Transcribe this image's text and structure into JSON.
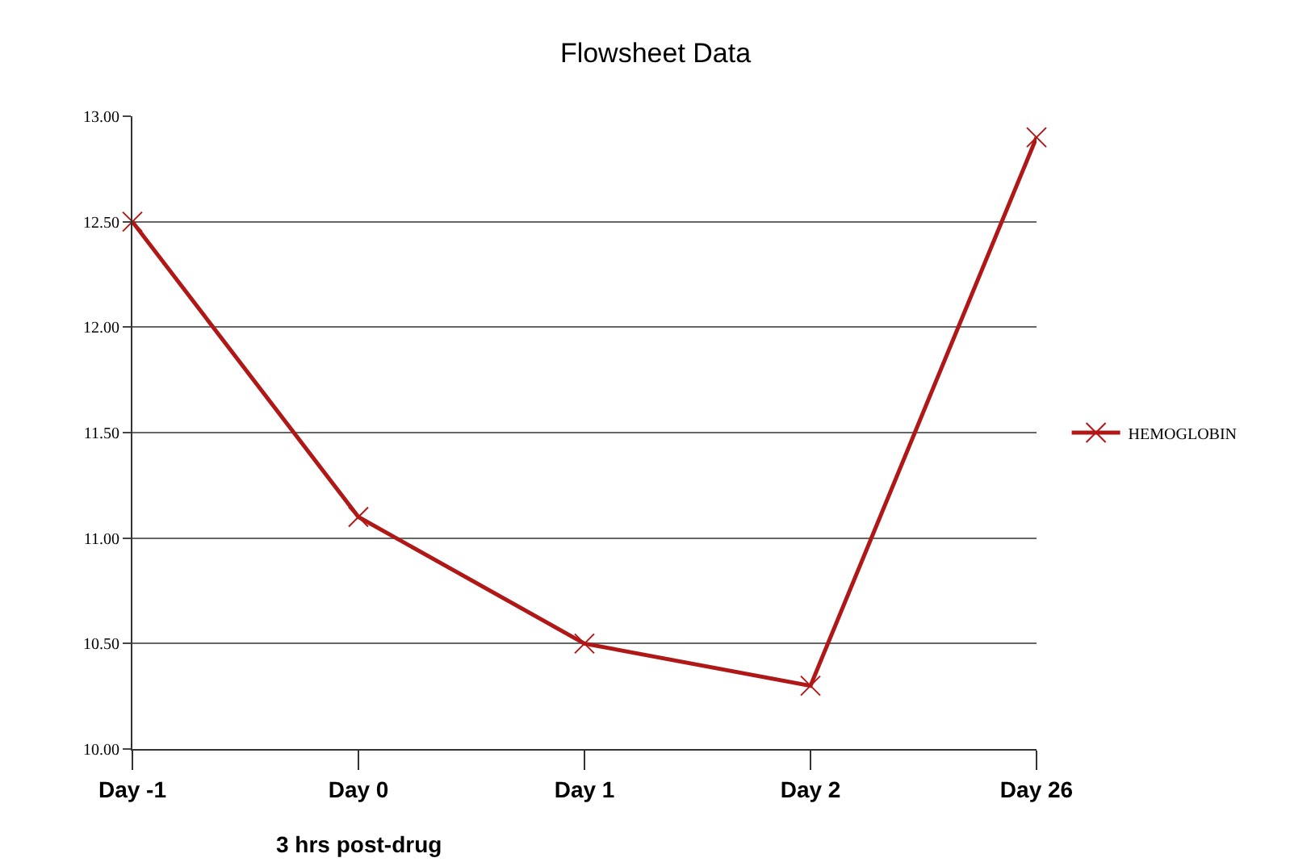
{
  "chart_data": {
    "type": "line",
    "title": "Flowsheet Data",
    "categories": [
      "Day -1",
      "Day 0",
      "Day 1",
      "Day 2",
      "Day 26"
    ],
    "series": [
      {
        "name": "HEMOGLOBIN",
        "color": "#b01818",
        "values": [
          12.5,
          11.1,
          10.5,
          10.3,
          12.9
        ]
      }
    ],
    "ylim": [
      10,
      13
    ],
    "yticks": [
      {
        "value": 10,
        "label": "10.00"
      },
      {
        "value": 10.5,
        "label": "10.50"
      },
      {
        "value": 11,
        "label": "11.00"
      },
      {
        "value": 11.5,
        "label": "11.50"
      },
      {
        "value": 12,
        "label": "12.00"
      },
      {
        "value": 12.5,
        "label": "12.50"
      },
      {
        "value": 13,
        "label": "13.00"
      }
    ],
    "grid": "y",
    "legend": "right",
    "marker": "cross",
    "line_style": "solid",
    "annotations": [
      "3 hrs post-drug"
    ]
  }
}
